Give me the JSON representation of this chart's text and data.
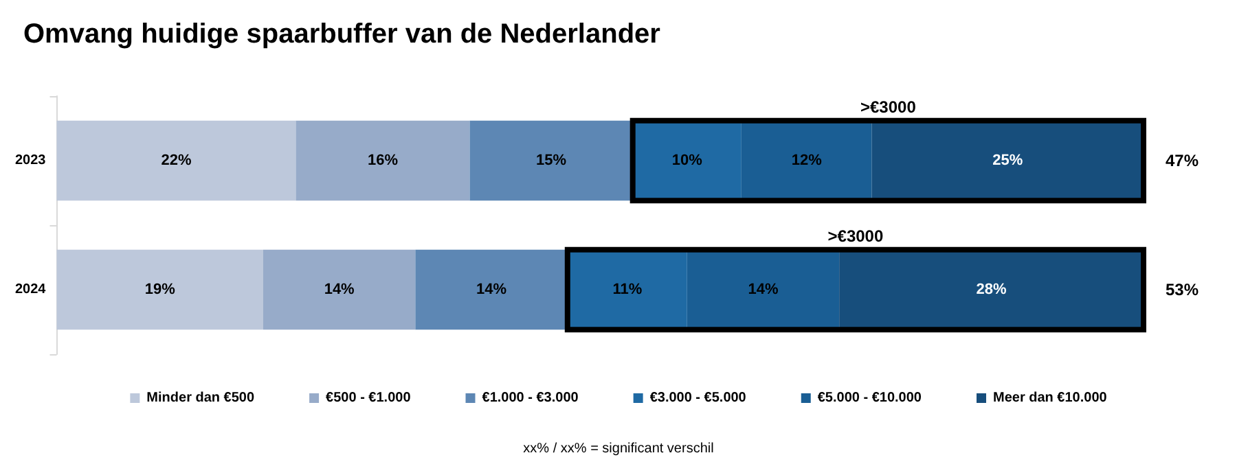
{
  "chart_data": {
    "type": "bar",
    "orientation": "horizontal",
    "stacked": true,
    "title": "Omvang huidige spaarbuffer van de Nederlander",
    "categories": [
      "2023",
      "2024"
    ],
    "series": [
      {
        "name": "Minder dan €500",
        "color": "#bdc8db",
        "values": [
          22,
          19
        ],
        "value_labels": [
          "22%",
          "19%"
        ]
      },
      {
        "name": "€500 - €1.000",
        "color": "#97abc9",
        "values": [
          16,
          14
        ],
        "value_labels": [
          "16%",
          "14%"
        ]
      },
      {
        "name": "€1.000 - €3.000",
        "color": "#5d87b4",
        "values": [
          15,
          14
        ],
        "value_labels": [
          "15%",
          "14%"
        ]
      },
      {
        "name": "€3.000 - €5.000",
        "color": "#1f6aa4",
        "values": [
          10,
          11
        ],
        "value_labels": [
          "10%",
          "11%"
        ]
      },
      {
        "name": "€5.000 - €10.000",
        "color": "#1a5e94",
        "values": [
          12,
          14
        ],
        "value_labels": [
          "12%",
          "14%"
        ]
      },
      {
        "name": "Meer dan €10.000",
        "color": "#174e7c",
        "values": [
          25,
          28
        ],
        "value_labels": [
          "25%",
          "28%"
        ]
      }
    ],
    "annotations": [
      ">€3000",
      ">€3000",
      {
        "text": "47%",
        "x": 100,
        "y": "2023"
      },
      {
        "text": "53%",
        "x": 100,
        "y": "2024"
      },
      "xx% / xx% = significant verschil"
    ],
    "legend": "bottom",
    "grid": false,
    "tick_labels": "y"
  }
}
